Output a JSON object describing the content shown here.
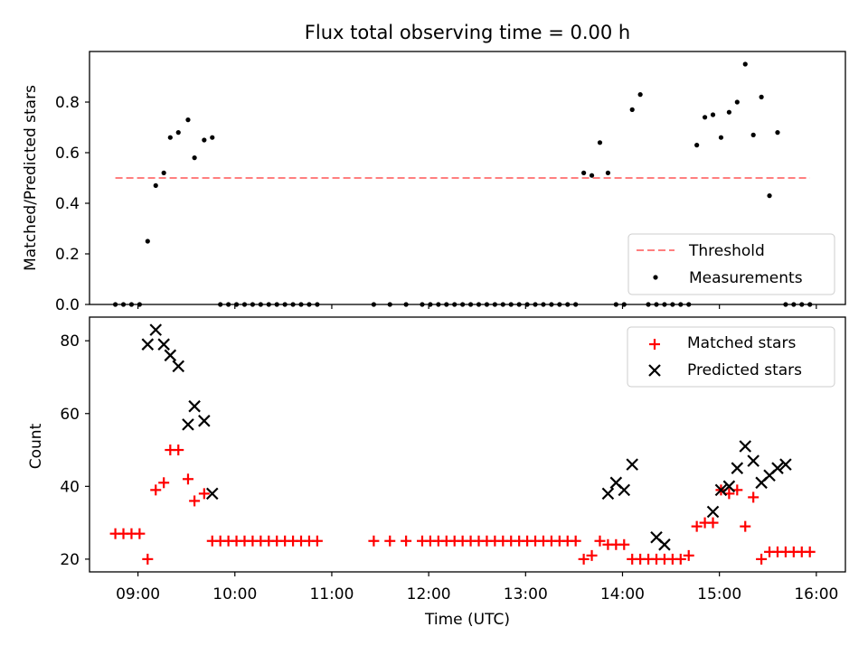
{
  "chart_data": [
    {
      "type": "scatter",
      "title": "Flux total observing time = 0.00 h",
      "xlabel": "",
      "ylabel": "Matched/Predicted stars",
      "xlim": [
        "08:30",
        "16:18"
      ],
      "ylim": [
        0,
        1.0
      ],
      "yticks": [
        "0.0",
        "0.2",
        "0.4",
        "0.6",
        "0.8"
      ],
      "legend_position": "bottom-right",
      "threshold": {
        "name": "Threshold",
        "y": 0.5,
        "x_start": "08:46",
        "x_end": "15:56",
        "color": "#ff7f7f",
        "style": "dashed"
      },
      "series": [
        {
          "name": "Measurements",
          "color": "#000000",
          "marker": "dot",
          "x": [
            "08:46",
            "08:51",
            "08:56",
            "09:01",
            "09:06",
            "09:11",
            "09:16",
            "09:20",
            "09:25",
            "09:31",
            "09:35",
            "09:41",
            "09:46",
            "09:51",
            "09:56",
            "10:01",
            "10:06",
            "10:11",
            "10:16",
            "10:21",
            "10:26",
            "10:31",
            "10:36",
            "10:41",
            "10:46",
            "10:51",
            "11:26",
            "11:36",
            "11:46",
            "11:56",
            "12:01",
            "12:06",
            "12:11",
            "12:16",
            "12:21",
            "12:26",
            "12:31",
            "12:36",
            "12:41",
            "12:46",
            "12:51",
            "12:56",
            "13:01",
            "13:06",
            "13:11",
            "13:16",
            "13:21",
            "13:26",
            "13:31",
            "13:36",
            "13:41",
            "13:46",
            "13:51",
            "13:56",
            "14:01",
            "14:06",
            "14:11",
            "14:16",
            "14:21",
            "14:26",
            "14:31",
            "14:36",
            "14:41",
            "14:46",
            "14:51",
            "14:56",
            "15:01",
            "15:06",
            "15:11",
            "15:16",
            "15:21",
            "15:26",
            "15:31",
            "15:36",
            "15:41",
            "15:46",
            "15:51",
            "15:56"
          ],
          "y": [
            0,
            0,
            0,
            0,
            0.25,
            0.47,
            0.52,
            0.66,
            0.68,
            0.73,
            0.58,
            0.65,
            0.66,
            0,
            0,
            0,
            0,
            0,
            0,
            0,
            0,
            0,
            0,
            0,
            0,
            0,
            0,
            0,
            0,
            0,
            0,
            0,
            0,
            0,
            0,
            0,
            0,
            0,
            0,
            0,
            0,
            0,
            0,
            0,
            0,
            0,
            0,
            0,
            0,
            0.52,
            0.51,
            0.64,
            0.52,
            0,
            0,
            0.77,
            0.83,
            0,
            0,
            0,
            0,
            0,
            0,
            0.63,
            0.74,
            0.75,
            0.66,
            0.76,
            0.8,
            0.95,
            0.67,
            0.82,
            0.43,
            0.68,
            0,
            0,
            0,
            0
          ]
        }
      ]
    },
    {
      "type": "scatter",
      "title": "",
      "xlabel": "Time (UTC)",
      "ylabel": "Count",
      "xlim": [
        "08:30",
        "16:18"
      ],
      "ylim": [
        16.5,
        86.5
      ],
      "yticks": [
        "20",
        "40",
        "60",
        "80"
      ],
      "xticks": [
        "09:00",
        "10:00",
        "11:00",
        "12:00",
        "13:00",
        "14:00",
        "15:00",
        "16:00"
      ],
      "legend_position": "top-right",
      "series": [
        {
          "name": "Matched stars",
          "color": "#ff0000",
          "marker": "plus",
          "x": [
            "08:46",
            "08:51",
            "08:56",
            "09:01",
            "09:06",
            "09:11",
            "09:16",
            "09:20",
            "09:25",
            "09:31",
            "09:35",
            "09:41",
            "09:46",
            "09:51",
            "09:56",
            "10:01",
            "10:06",
            "10:11",
            "10:16",
            "10:21",
            "10:26",
            "10:31",
            "10:36",
            "10:41",
            "10:46",
            "10:51",
            "11:26",
            "11:36",
            "11:46",
            "11:56",
            "12:01",
            "12:06",
            "12:11",
            "12:16",
            "12:21",
            "12:26",
            "12:31",
            "12:36",
            "12:41",
            "12:46",
            "12:51",
            "12:56",
            "13:01",
            "13:06",
            "13:11",
            "13:16",
            "13:21",
            "13:26",
            "13:31",
            "13:36",
            "13:41",
            "13:46",
            "13:51",
            "13:56",
            "14:01",
            "14:06",
            "14:11",
            "14:16",
            "14:21",
            "14:26",
            "14:31",
            "14:36",
            "14:41",
            "14:46",
            "14:51",
            "14:56",
            "15:01",
            "15:06",
            "15:11",
            "15:16",
            "15:21",
            "15:26",
            "15:31",
            "15:36",
            "15:41",
            "15:46",
            "15:51",
            "15:56"
          ],
          "y": [
            27,
            27,
            27,
            27,
            20,
            39,
            41,
            50,
            50,
            42,
            36,
            38,
            25,
            25,
            25,
            25,
            25,
            25,
            25,
            25,
            25,
            25,
            25,
            25,
            25,
            25,
            25,
            25,
            25,
            25,
            25,
            25,
            25,
            25,
            25,
            25,
            25,
            25,
            25,
            25,
            25,
            25,
            25,
            25,
            25,
            25,
            25,
            25,
            25,
            20,
            21,
            25,
            24,
            24,
            24,
            20,
            20,
            20,
            20,
            20,
            20,
            20,
            21,
            29,
            30,
            30,
            39,
            38,
            39,
            29,
            37,
            20,
            22,
            22,
            22,
            22,
            22,
            22
          ]
        },
        {
          "name": "Predicted stars",
          "color": "#000000",
          "marker": "x",
          "x": [
            "09:06",
            "09:11",
            "09:16",
            "09:20",
            "09:25",
            "09:31",
            "09:35",
            "09:41",
            "09:46",
            "13:51",
            "13:56",
            "14:01",
            "14:06",
            "14:21",
            "14:26",
            "14:56",
            "15:01",
            "15:06",
            "15:11",
            "15:16",
            "15:21",
            "15:26",
            "15:31",
            "15:36",
            "15:41"
          ],
          "y": [
            79,
            83,
            79,
            76,
            73,
            57,
            62,
            58,
            38,
            38,
            41,
            39,
            46,
            26,
            24,
            33,
            39,
            40,
            45,
            51,
            47,
            41,
            43,
            45,
            46
          ]
        }
      ]
    }
  ]
}
